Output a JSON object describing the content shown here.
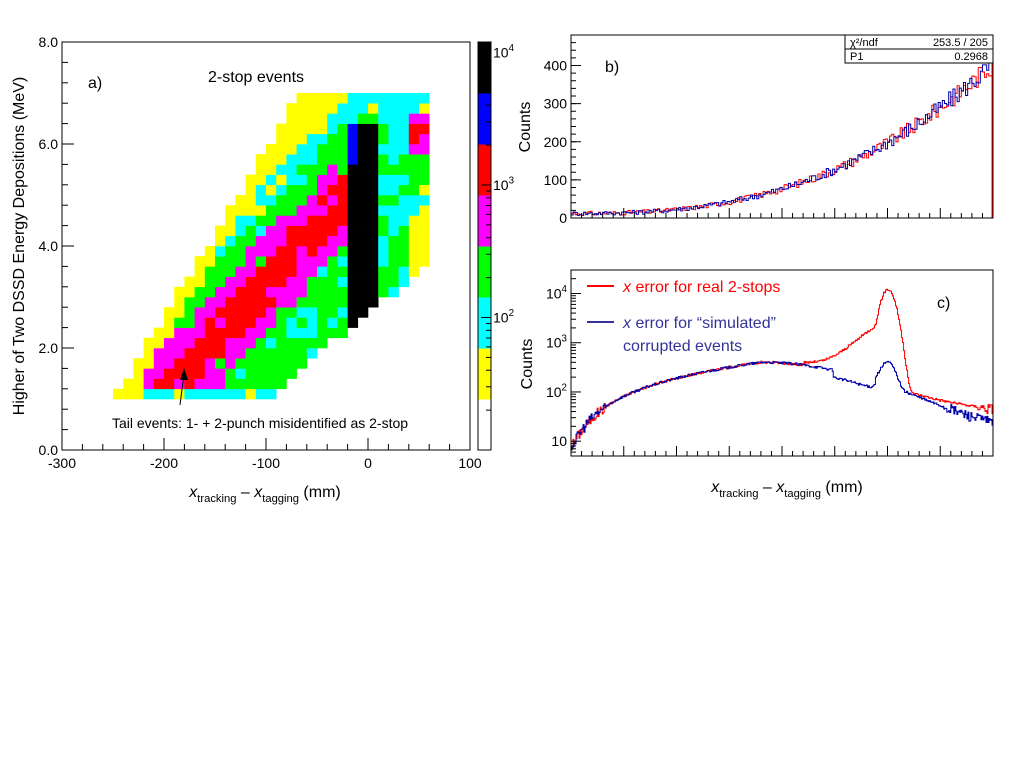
{
  "chart_data": [
    {
      "id": "a",
      "type": "heatmap",
      "panel_label": "a)",
      "title": "2-stop events",
      "xlabel": "x_tracking – x_tagging (mm)",
      "ylabel": "Higher of Two DSSD Energy Depositions (MeV)",
      "xlim": [
        -300,
        100
      ],
      "ylim": [
        0,
        8
      ],
      "x_ticks": [
        "-300",
        "-200",
        "-100",
        "0",
        "100"
      ],
      "x_tick_values": [
        -300,
        -200,
        -100,
        0,
        100
      ],
      "y_ticks": [
        "0.0",
        "2.0",
        "4.0",
        "6.0",
        "8.0"
      ],
      "y_tick_values": [
        0,
        2,
        4,
        6,
        8
      ],
      "annotation": "Tail events: 1- + 2-punch misidentified as 2-stop",
      "palette_levels": [
        "#ffff00",
        "#00ffff",
        "#00ff00",
        "#ff00ff",
        "#ff0000",
        "#0000ff",
        "#000000"
      ],
      "cell_size": [
        10,
        0.2
      ],
      "ridge_tail_point": [
        -180,
        1.5
      ],
      "colorbar": {
        "tick_labels": [
          "10^2",
          "10^3",
          "10^4"
        ],
        "tick_values": [
          100,
          1000,
          10000
        ],
        "range": [
          10,
          12000
        ],
        "scale": "log"
      }
    },
    {
      "id": "b",
      "type": "line",
      "panel_label": "b)",
      "xlabel": "",
      "ylabel": "Counts",
      "ylim": [
        0,
        480
      ],
      "y_ticks": [
        "0",
        "100",
        "200",
        "300",
        "400"
      ],
      "y_tick_values": [
        0,
        100,
        200,
        300,
        400
      ],
      "stats_box": [
        {
          "key": "χ²/ndf",
          "value": "253.5  /  205"
        },
        {
          "key": "P1",
          "value": "0.2968"
        }
      ],
      "series": [
        {
          "color": "#ff0000"
        },
        {
          "color": "#0000aa"
        }
      ]
    },
    {
      "id": "c",
      "type": "line",
      "panel_label": "c)",
      "xlabel": "x_tracking – x_tagging (mm)",
      "ylabel": "Counts",
      "yscale": "log",
      "ylim": [
        5,
        30000
      ],
      "y_ticks": [
        "10",
        "10^2",
        "10^3",
        "10^4"
      ],
      "y_tick_values": [
        10,
        100,
        1000,
        10000
      ],
      "legend": [
        {
          "text": "x error for real 2-stops",
          "color": "#ff0000"
        },
        {
          "text": "x error for “simulated” corrupted events",
          "line1": "x error for “simulated”",
          "line2": "corrupted events",
          "color": "#333399"
        }
      ],
      "series": [
        {
          "name": "x error for real 2-stops",
          "color": "#ff0000",
          "peak_counts": 12000,
          "tail_counts": 35
        },
        {
          "name": "x error for “simulated” corrupted events",
          "color": "#0000aa",
          "peak_counts": 280,
          "tail_counts": 10
        }
      ]
    }
  ]
}
